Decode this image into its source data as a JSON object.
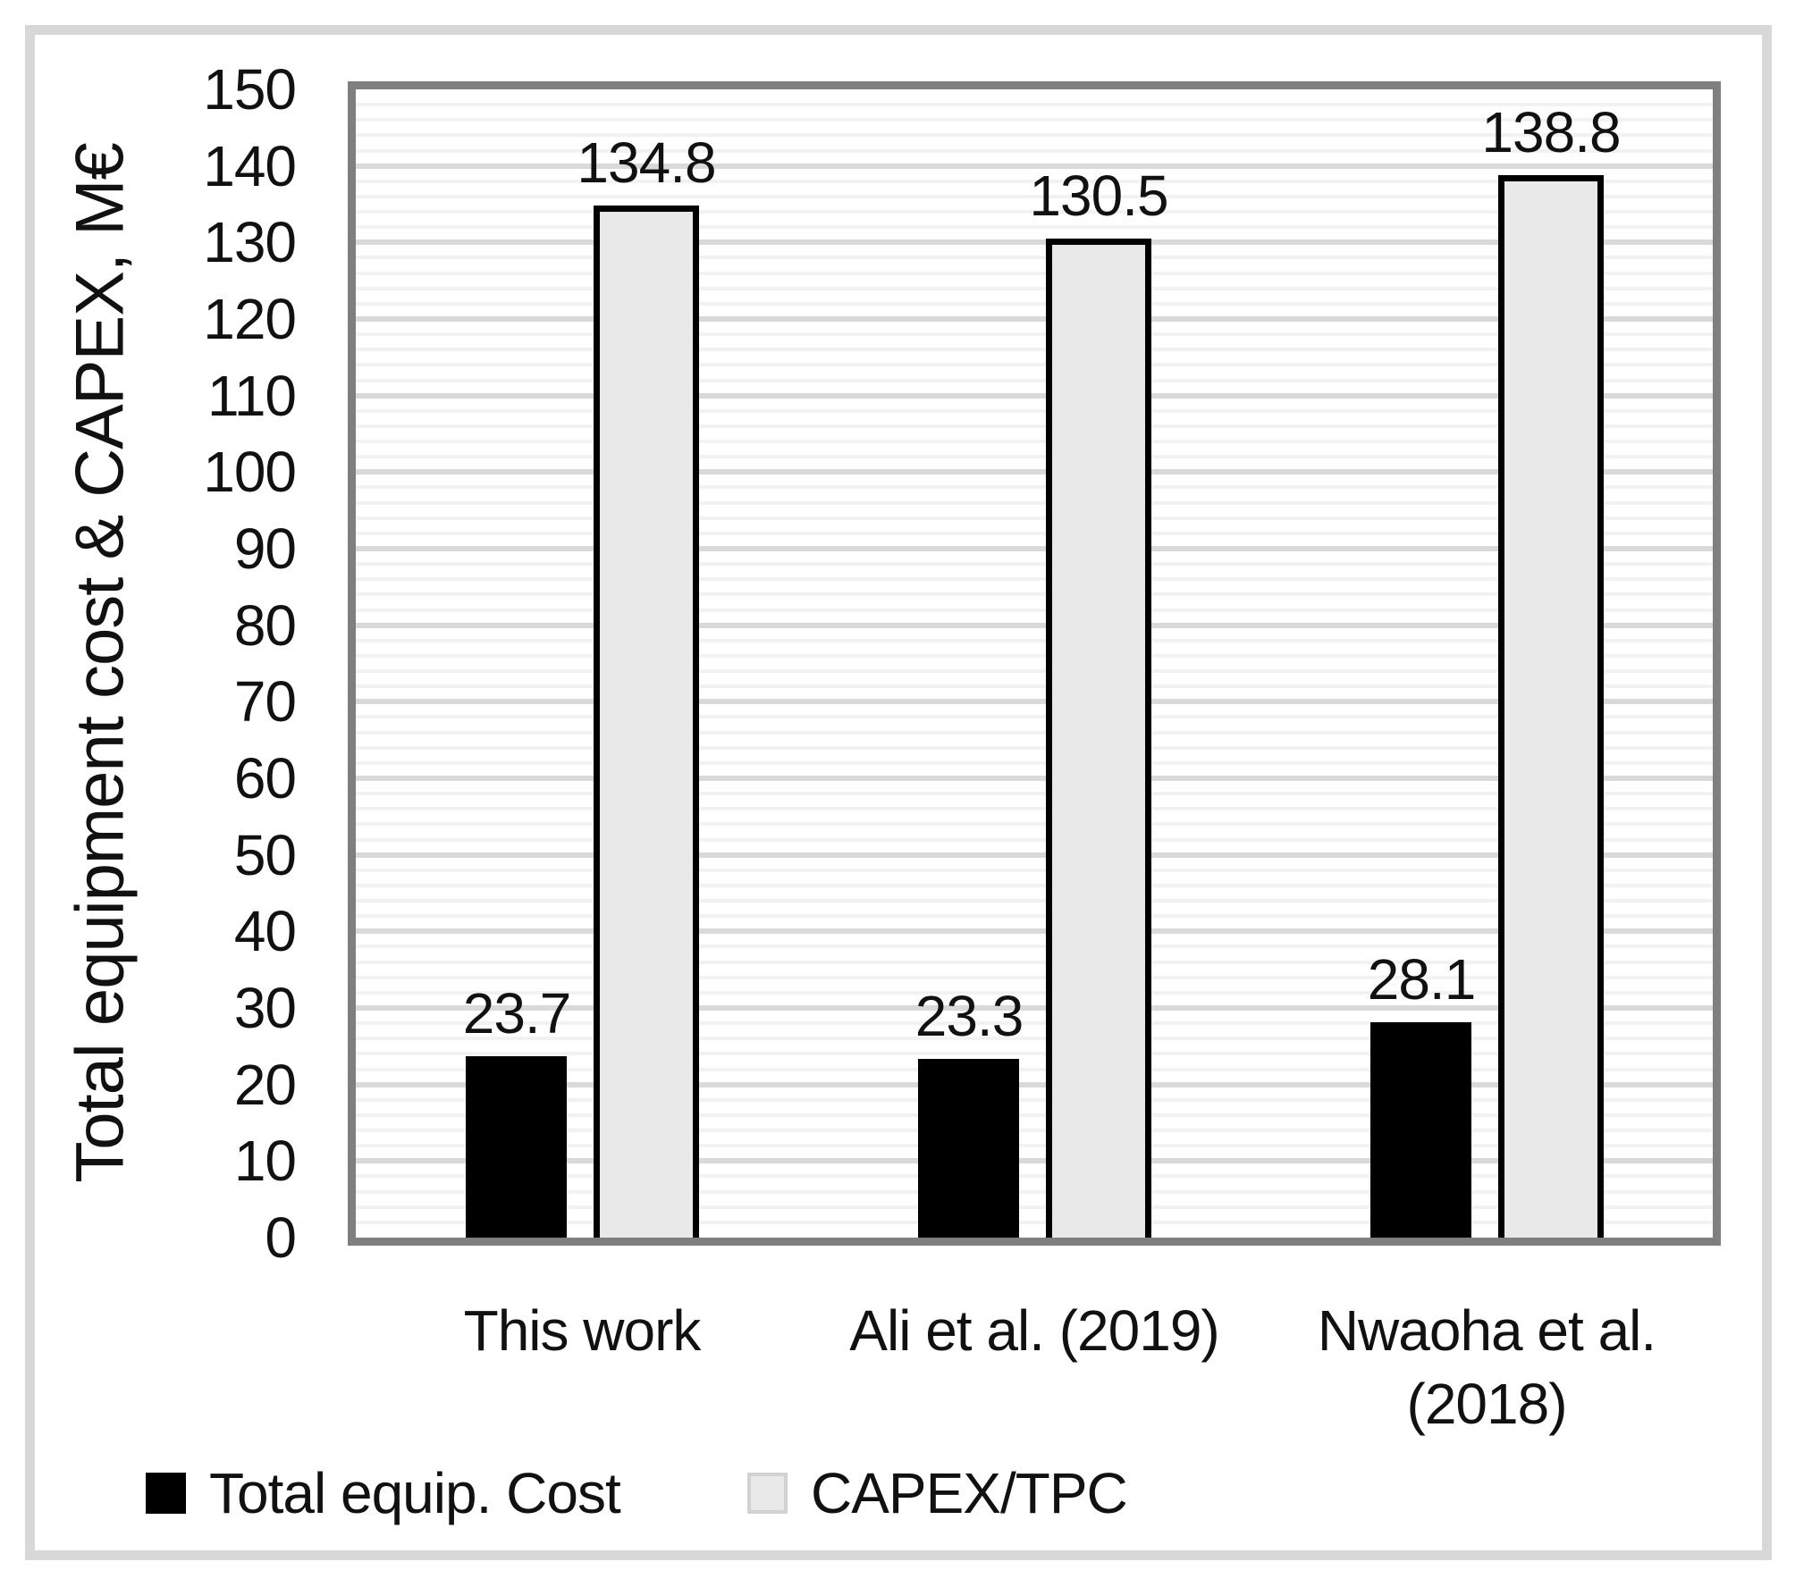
{
  "chart_data": {
    "type": "bar",
    "title": "",
    "ylabel": "Total equipment cost & CAPEX,  M€",
    "xlabel": "",
    "categories": [
      "This work",
      "Ali et al. (2019)",
      "Nwaoha et al.\n(2018)"
    ],
    "series": [
      {
        "name": "Total equip. Cost",
        "values": [
          23.7,
          23.3,
          28.1
        ],
        "data_labels": [
          "23.7",
          "23.3",
          "28.1"
        ],
        "fill": "#000000",
        "outline": "#000000"
      },
      {
        "name": "CAPEX/TPC",
        "values": [
          134.8,
          130.5,
          138.8
        ],
        "data_labels": [
          "134.8",
          "130.5",
          "138.8"
        ],
        "fill": "#e9e9e9",
        "outline": "#000000"
      }
    ],
    "ylim": [
      0,
      150
    ],
    "ytick_step": 10,
    "yminor_step": 2,
    "yticks": [
      "0",
      "10",
      "20",
      "30",
      "40",
      "50",
      "60",
      "70",
      "80",
      "90",
      "100",
      "110",
      "120",
      "130",
      "140",
      "150"
    ],
    "grid": "horizontal, minor every 2, major every 10",
    "legend_position": "bottom-left"
  },
  "colors": {
    "background": "#ffffff",
    "figure_border": "#d8d8d8",
    "plot_border": "#7f7f7f",
    "major_grid": "#d9d9d9",
    "minor_grid": "#f2f2f2",
    "text": "#111111",
    "series1_fill": "#000000",
    "series2_fill": "#e9e9e9",
    "series2_outline": "#000000",
    "legend_gray_swatch_border": "#d2d2d2"
  }
}
